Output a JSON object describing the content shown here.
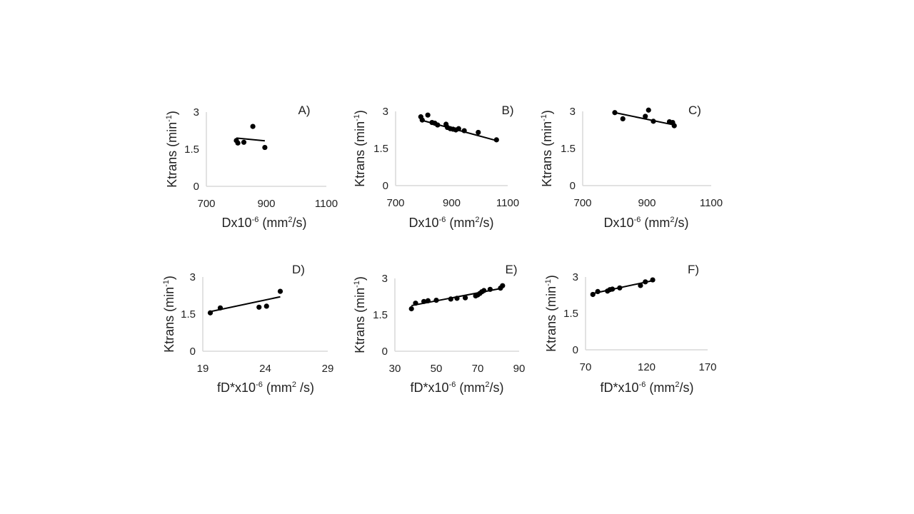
{
  "chart_data": [
    {
      "type": "scatter",
      "panel": "A)",
      "xlabel": "Dx10-6 (mm2/s)",
      "xlabel_parts": {
        "main": "Dx10",
        "sup1": "-6",
        "mid": " (mm",
        "sup2": "2",
        "end": "/s)"
      },
      "ylabel_parts": {
        "main": "Ktrans  (min",
        "sup": "-1",
        "end": ")"
      },
      "xlim": [
        700,
        1100
      ],
      "ylim": [
        0,
        3
      ],
      "xticks": [
        "700",
        "900",
        "1100"
      ],
      "yticks": [
        "0",
        "1.5",
        "3"
      ],
      "points": [
        [
          800,
          1.85
        ],
        [
          805,
          1.75
        ],
        [
          825,
          1.78
        ],
        [
          855,
          2.42
        ],
        [
          895,
          1.57
        ]
      ],
      "fit": [
        [
          800,
          1.95
        ],
        [
          895,
          1.84
        ]
      ]
    },
    {
      "type": "scatter",
      "panel": "B)",
      "xlabel": "Dx10-6 (mm2/s)",
      "xlabel_parts": {
        "main": "Dx10",
        "sup1": "-6",
        "mid": " (mm",
        "sup2": "2",
        "end": "/s)"
      },
      "ylabel_parts": {
        "main": "Ktrans  (min",
        "sup": "-1",
        "end": ")"
      },
      "xlim": [
        700,
        1100
      ],
      "ylim": [
        0,
        3
      ],
      "xticks": [
        "700",
        "900",
        "1100"
      ],
      "yticks": [
        "0",
        "1.5",
        "3"
      ],
      "points": [
        [
          790,
          2.78
        ],
        [
          795,
          2.65
        ],
        [
          815,
          2.85
        ],
        [
          830,
          2.55
        ],
        [
          840,
          2.52
        ],
        [
          850,
          2.45
        ],
        [
          880,
          2.48
        ],
        [
          885,
          2.35
        ],
        [
          895,
          2.3
        ],
        [
          905,
          2.28
        ],
        [
          915,
          2.25
        ],
        [
          925,
          2.3
        ],
        [
          945,
          2.22
        ],
        [
          995,
          2.15
        ],
        [
          1060,
          1.85
        ]
      ],
      "fit": [
        [
          790,
          2.65
        ],
        [
          1060,
          1.82
        ]
      ]
    },
    {
      "type": "scatter",
      "panel": "C)",
      "xlabel": "Dx10-6 (mm2/s)",
      "xlabel_parts": {
        "main": "Dx10",
        "sup1": "-6",
        "mid": " (mm",
        "sup2": "2",
        "end": "/s)"
      },
      "ylabel_parts": {
        "main": "Ktrans  (min",
        "sup": "-1",
        "end": ")"
      },
      "xlim": [
        700,
        1100
      ],
      "ylim": [
        0,
        3
      ],
      "xticks": [
        "700",
        "900",
        "1100"
      ],
      "yticks": [
        "0",
        "1.5",
        "3"
      ],
      "points": [
        [
          800,
          2.95
        ],
        [
          825,
          2.7
        ],
        [
          895,
          2.8
        ],
        [
          905,
          3.05
        ],
        [
          920,
          2.6
        ],
        [
          970,
          2.58
        ],
        [
          980,
          2.55
        ],
        [
          985,
          2.42
        ]
      ],
      "fit": [
        [
          800,
          2.95
        ],
        [
          985,
          2.45
        ]
      ]
    },
    {
      "type": "scatter",
      "panel": "D)",
      "xlabel": "fD*x10-6 (mm2/s)",
      "xlabel_parts": {
        "main": "fD*x10",
        "sup1": "-6",
        "mid": " (mm",
        "sup2": "2",
        "end": " /s)"
      },
      "ylabel_parts": {
        "main": "Ktrans  (min",
        "sup": "-1",
        "end": ")"
      },
      "xlim": [
        19,
        29
      ],
      "ylim": [
        0,
        3
      ],
      "xticks": [
        "19",
        "24",
        "29"
      ],
      "yticks": [
        "0",
        "1.5",
        "3"
      ],
      "points": [
        [
          19.6,
          1.55
        ],
        [
          20.4,
          1.75
        ],
        [
          23.5,
          1.78
        ],
        [
          24.1,
          1.82
        ],
        [
          25.2,
          2.42
        ]
      ],
      "fit": [
        [
          19.6,
          1.6
        ],
        [
          25.2,
          2.2
        ]
      ]
    },
    {
      "type": "scatter",
      "panel": "E)",
      "xlabel": "fD*x10-6 (mm2/s)",
      "xlabel_parts": {
        "main": "fD*x10",
        "sup1": "-6",
        "mid": " (mm",
        "sup2": "2",
        "end": "/s)"
      },
      "ylabel_parts": {
        "main": "Ktrans  (min",
        "sup": "-1",
        "end": ")"
      },
      "xlim": [
        30,
        90
      ],
      "ylim": [
        0,
        3
      ],
      "xticks": [
        "30",
        "50",
        "70",
        "90"
      ],
      "yticks": [
        "0",
        "1.5",
        "3"
      ],
      "points": [
        [
          38,
          1.75
        ],
        [
          40,
          1.98
        ],
        [
          44,
          2.05
        ],
        [
          46,
          2.08
        ],
        [
          50,
          2.1
        ],
        [
          57,
          2.15
        ],
        [
          60,
          2.18
        ],
        [
          64,
          2.2
        ],
        [
          69,
          2.28
        ],
        [
          70,
          2.32
        ],
        [
          71,
          2.38
        ],
        [
          72,
          2.45
        ],
        [
          73,
          2.5
        ],
        [
          76,
          2.55
        ],
        [
          81,
          2.6
        ],
        [
          82,
          2.7
        ]
      ],
      "fit": [
        [
          38,
          1.88
        ],
        [
          82,
          2.6
        ]
      ]
    },
    {
      "type": "scatter",
      "panel": "F)",
      "xlabel": "fD*x10-6 (mm2/s)",
      "xlabel_parts": {
        "main": "fD*x10",
        "sup1": "-6",
        "mid": " (mm",
        "sup2": "2",
        "end": "/s)"
      },
      "ylabel_parts": {
        "main": "Ktrans  (min",
        "sup": "-1",
        "end": ")"
      },
      "xlim": [
        70,
        170
      ],
      "ylim": [
        0,
        3
      ],
      "xticks": [
        "70",
        "120",
        "170"
      ],
      "yticks": [
        "0",
        "1.5",
        "3"
      ],
      "points": [
        [
          76,
          2.28
        ],
        [
          80,
          2.4
        ],
        [
          88,
          2.42
        ],
        [
          90,
          2.48
        ],
        [
          92,
          2.5
        ],
        [
          98,
          2.55
        ],
        [
          115,
          2.65
        ],
        [
          119,
          2.8
        ],
        [
          125,
          2.88
        ]
      ],
      "fit": [
        [
          76,
          2.32
        ],
        [
          125,
          2.85
        ]
      ]
    }
  ]
}
